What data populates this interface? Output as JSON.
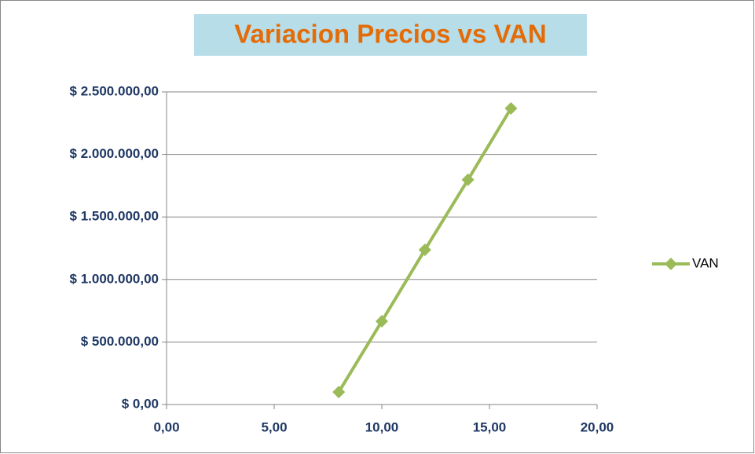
{
  "chart_data": {
    "type": "scatter-line",
    "title": "Variacion Precios vs VAN",
    "x": [
      8,
      10,
      12,
      14,
      16
    ],
    "series": [
      {
        "name": "VAN",
        "color": "#9bbb59",
        "values": [
          100000,
          666000,
          1237000,
          1797000,
          2368000
        ]
      }
    ],
    "xlim": [
      0,
      20
    ],
    "xticks": [
      {
        "value": 0,
        "label": "0,00"
      },
      {
        "value": 5,
        "label": "5,00"
      },
      {
        "value": 10,
        "label": "10,00"
      },
      {
        "value": 15,
        "label": "15,00"
      },
      {
        "value": 20,
        "label": "20,00"
      }
    ],
    "ylim": [
      0,
      2500000
    ],
    "yticks": [
      {
        "value": 0,
        "label": "$ 0,00"
      },
      {
        "value": 500000,
        "label": "$ 500.000,00"
      },
      {
        "value": 1000000,
        "label": "$ 1.000.000,00"
      },
      {
        "value": 1500000,
        "label": "$ 1.500.000,00"
      },
      {
        "value": 2000000,
        "label": "$ 2.000.000,00"
      },
      {
        "value": 2500000,
        "label": "$ 2.500.000,00"
      }
    ],
    "grid": true,
    "legend": "right"
  }
}
